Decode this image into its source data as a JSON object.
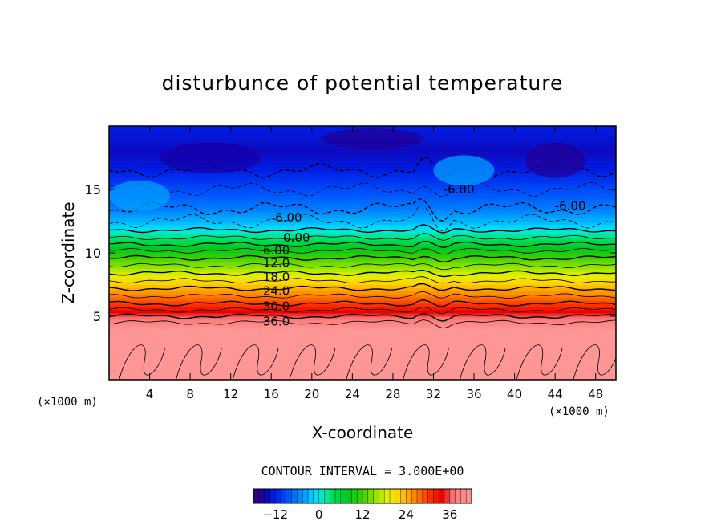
{
  "chart_data": {
    "type": "heatmap",
    "title": "disturbunce of potential temperature",
    "xlabel": "X-coordinate",
    "ylabel": "Z-coordinate",
    "x_unit": "(×1000 m)",
    "xlim": [
      0,
      50
    ],
    "ylim": [
      0,
      20
    ],
    "x_ticks": [
      4,
      8,
      12,
      16,
      20,
      24,
      28,
      32,
      36,
      40,
      44,
      48
    ],
    "y_ticks": [
      5,
      10,
      15
    ],
    "contour_interval_label": "CONTOUR INTERVAL = 3.000E+00",
    "colorbar": {
      "min": -18,
      "max": 42,
      "ticks": [
        -12,
        0,
        12,
        24,
        36
      ]
    },
    "contour_labels": [
      "0.00",
      "6.00",
      "12.0",
      "18.0",
      "24.0",
      "30.0",
      "36.0",
      "-6.00",
      "-6.00",
      "-6.00"
    ],
    "profile": {
      "z": [
        0,
        4,
        5,
        6,
        7,
        8,
        9,
        10,
        11,
        11.8,
        12.5,
        13.5,
        15,
        16.5,
        18,
        20
      ],
      "value": [
        42,
        42,
        36,
        30,
        25,
        20,
        15,
        10,
        4,
        0,
        -3,
        -6,
        -9,
        -12,
        -14,
        -12
      ]
    }
  }
}
